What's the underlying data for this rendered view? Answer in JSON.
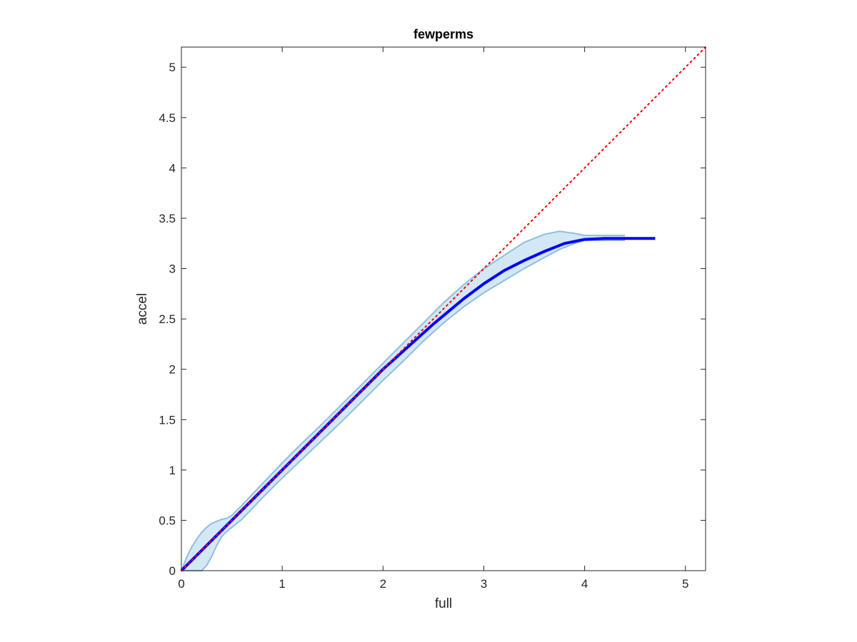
{
  "chart_data": {
    "type": "line",
    "title": "fewperms",
    "xlabel": "full",
    "ylabel": "accel",
    "xlim": [
      0,
      5.2
    ],
    "ylim": [
      0,
      5.2
    ],
    "xticks": [
      0,
      1,
      2,
      3,
      4,
      5
    ],
    "yticks": [
      0,
      0.5,
      1,
      1.5,
      2,
      2.5,
      3,
      3.5,
      4,
      4.5,
      5
    ],
    "xtick_labels": [
      "0",
      "1",
      "2",
      "3",
      "4",
      "5"
    ],
    "ytick_labels": [
      "0",
      "0.5",
      "1",
      "1.5",
      "2",
      "2.5",
      "3",
      "3.5",
      "4",
      "4.5",
      "5"
    ],
    "grid": false,
    "box": true,
    "series": [
      {
        "style": "band",
        "color": "#c6dff1",
        "edge_color": "#8fbfdf",
        "x": [
          0,
          0.05,
          0.1,
          0.15,
          0.2,
          0.25,
          0.3,
          0.35,
          0.4,
          0.45,
          0.5,
          0.6,
          0.8,
          1.0,
          1.2,
          1.4,
          1.6,
          1.8,
          2.0,
          2.2,
          2.4,
          2.6,
          2.8,
          3.0,
          3.2,
          3.4,
          3.6,
          3.75,
          3.9,
          4.0,
          4.2,
          4.4
        ],
        "upper": [
          0,
          0.13,
          0.23,
          0.31,
          0.38,
          0.43,
          0.47,
          0.49,
          0.51,
          0.52,
          0.55,
          0.65,
          0.86,
          1.07,
          1.27,
          1.46,
          1.66,
          1.86,
          2.06,
          2.26,
          2.46,
          2.66,
          2.84,
          3.0,
          3.13,
          3.26,
          3.34,
          3.37,
          3.35,
          3.33,
          3.33,
          3.33
        ],
        "lower": [
          0,
          0,
          0,
          0,
          0,
          0.05,
          0.14,
          0.25,
          0.34,
          0.39,
          0.43,
          0.51,
          0.72,
          0.92,
          1.11,
          1.3,
          1.49,
          1.69,
          1.89,
          2.08,
          2.28,
          2.46,
          2.62,
          2.76,
          2.88,
          3.0,
          3.11,
          3.19,
          3.25,
          3.28,
          3.28,
          3.28
        ]
      },
      {
        "style": "line",
        "color": "#0000ff",
        "x": [
          0,
          0.5,
          1.0,
          1.5,
          2.0,
          2.5,
          2.8,
          3.0,
          3.2,
          3.4,
          3.6,
          3.8,
          4.0,
          4.2,
          4.4,
          4.7
        ],
        "y": [
          0,
          0.5,
          1.0,
          1.5,
          2.0,
          2.45,
          2.7,
          2.85,
          2.98,
          3.08,
          3.17,
          3.25,
          3.29,
          3.3,
          3.3,
          3.3
        ]
      },
      {
        "style": "dotted",
        "color": "#ff0000",
        "x": [
          0,
          5.2
        ],
        "y": [
          0,
          5.2
        ]
      }
    ]
  }
}
